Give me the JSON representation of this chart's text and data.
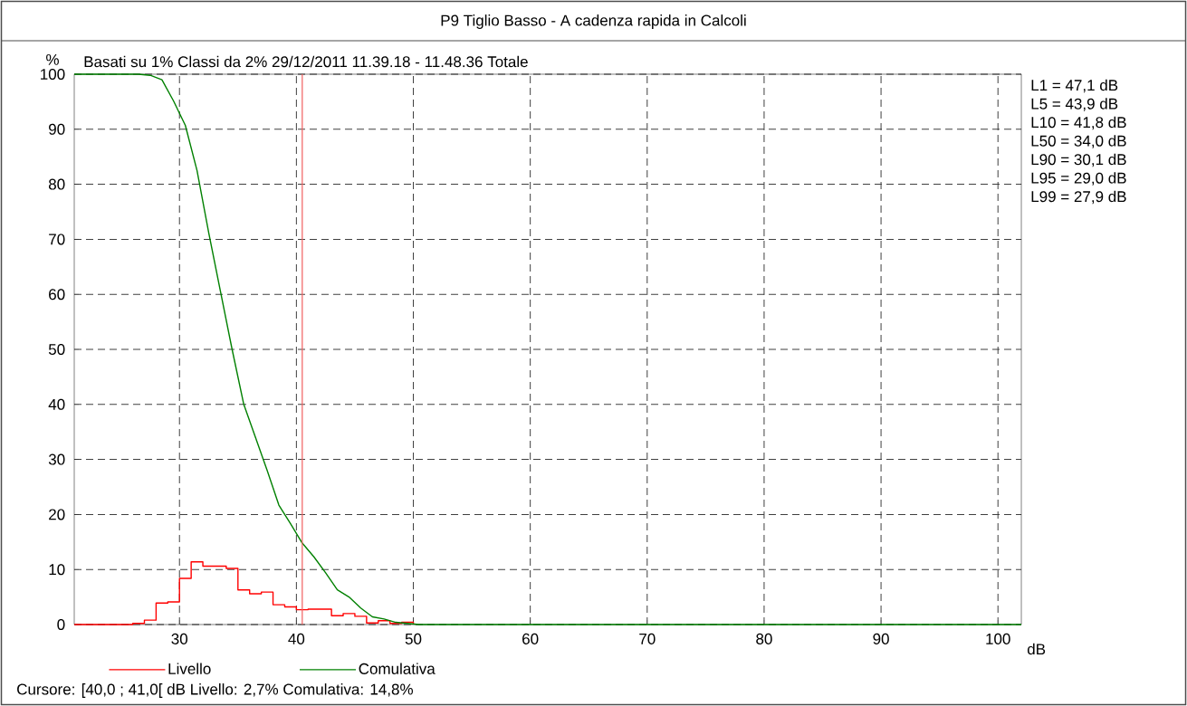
{
  "chart_data": {
    "type": "line",
    "title": "P9 Tiglio Basso - A cadenza rapida in Calcoli",
    "subtitle": "Basati su 1%   Classi da 2%  29/12/2011 11.39.18 - 11.48.36  Totale",
    "xlabel": "dB",
    "ylabel": "%",
    "series": [
      {
        "name": "Livello",
        "type": "step",
        "color": "#ff0000",
        "x": [
          21,
          26,
          27,
          28,
          29,
          30,
          31,
          32,
          33,
          34,
          35,
          36,
          37,
          38,
          39,
          40,
          41,
          42,
          43,
          44,
          45,
          46,
          47,
          48,
          49,
          50
        ],
        "values": [
          0,
          0.2,
          0.8,
          3.9,
          4.1,
          8.4,
          11.4,
          10.6,
          10.6,
          10.2,
          6.3,
          5.6,
          5.9,
          3.6,
          3.2,
          2.7,
          2.8,
          2.8,
          1.6,
          2.0,
          1.5,
          0.3,
          0.7,
          0.2,
          0.4,
          0
        ]
      },
      {
        "name": "Comulativa",
        "type": "line",
        "color": "#008000",
        "x": [
          21,
          26.5,
          27.5,
          28.5,
          29.5,
          30.5,
          31.5,
          32.5,
          33.5,
          34.5,
          35.5,
          36.5,
          37.5,
          38.5,
          39.5,
          40.5,
          41.5,
          42.5,
          43.5,
          44.5,
          45.5,
          46.5,
          47.5,
          48.5,
          49.5,
          50.5,
          102
        ],
        "values": [
          100,
          100,
          99.8,
          99.0,
          95.1,
          90.7,
          82.5,
          71.2,
          60.6,
          50.0,
          40.0,
          34.0,
          28.0,
          21.7,
          18.3,
          14.8,
          12.3,
          9.4,
          6.3,
          5.0,
          3.0,
          1.4,
          1.0,
          0.4,
          0.2,
          0,
          0
        ]
      }
    ],
    "xlim": [
      21,
      102
    ],
    "ylim": [
      0,
      100
    ],
    "xticks": [
      30,
      40,
      50,
      60,
      70,
      80,
      90,
      100
    ],
    "yticks": [
      0,
      10,
      20,
      30,
      40,
      50,
      60,
      70,
      80,
      90,
      100
    ],
    "grid": true,
    "legend": "bottom",
    "marker": "none",
    "line_style": "solid",
    "ref_lines": [
      {
        "axis": "x",
        "value": 40.5,
        "color": "#f06060"
      }
    ],
    "annotations": [
      "L1 = 47,1 dB",
      "L5 = 43,9 dB",
      "L10 = 41,8 dB",
      "L50 = 34,0 dB",
      "L90 = 30,1 dB",
      "L95 = 29,0 dB",
      "L99 = 27,9 dB",
      "Cursore: [40,0 ; 41,0[ dB   Livello: 2,7%   Comulativa: 14,8%"
    ]
  }
}
